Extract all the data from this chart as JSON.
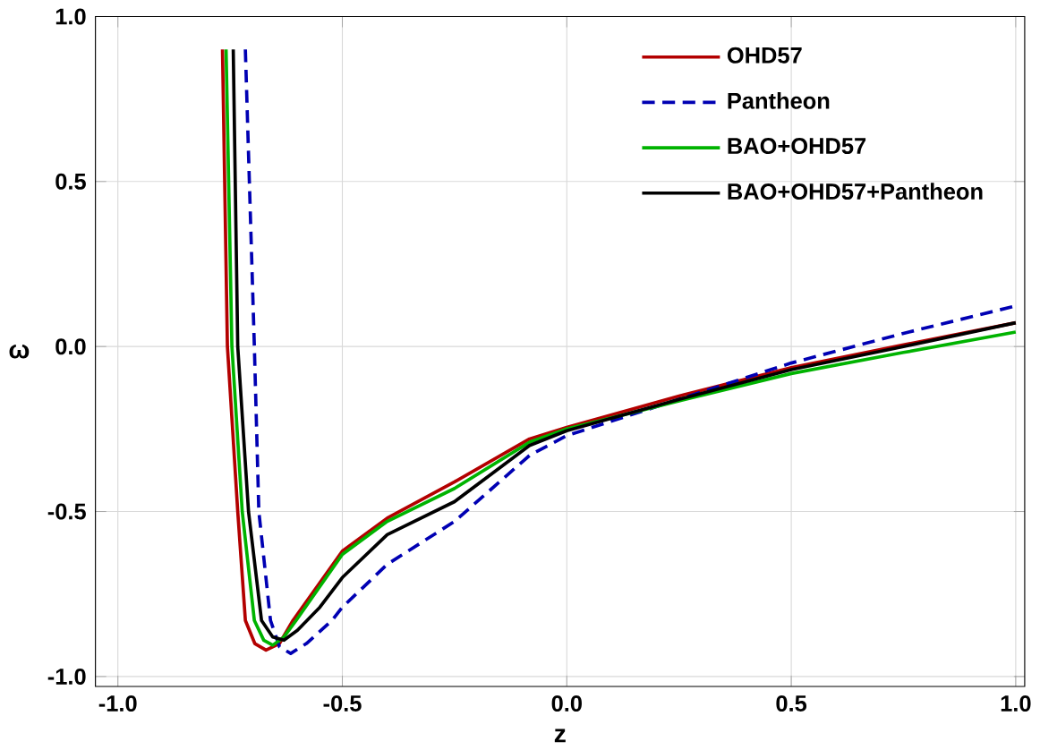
{
  "chart_data": {
    "type": "line",
    "xlabel": "z",
    "ylabel": "ω",
    "xlim": [
      -1.05,
      1.02
    ],
    "ylim": [
      -1.03,
      1.0
    ],
    "xticks": [
      {
        "value": -1.0,
        "label": "-1.0"
      },
      -0.5,
      {
        "value": 0.0,
        "label": "0.0"
      },
      0.5,
      {
        "value": 1.0,
        "label": "1.0"
      }
    ],
    "yticks": [
      {
        "value": -1.0,
        "label": "-1.0"
      },
      -0.5,
      {
        "value": 0.0,
        "label": "0.0"
      },
      0.5,
      {
        "value": 1.0,
        "label": "1.0"
      }
    ],
    "grid": true,
    "legend": "top right",
    "marker": "none",
    "series": [
      {
        "name": "OHD57",
        "color": "#b30000",
        "line_style": "solid",
        "x": [
          -0.767,
          -0.756,
          -0.733,
          -0.716,
          -0.695,
          -0.67,
          -0.64,
          -0.61,
          -0.5,
          -0.4,
          -0.25,
          -0.083,
          0,
          0.25,
          0.5,
          0.75,
          1.0
        ],
        "values": [
          0.9,
          0,
          -0.5,
          -0.83,
          -0.9,
          -0.92,
          -0.9,
          -0.83,
          -0.62,
          -0.52,
          -0.41,
          -0.28,
          -0.245,
          -0.15,
          -0.064,
          0.005,
          0.072
        ]
      },
      {
        "name": "Pantheon",
        "color": "#0000b3",
        "line_style": "dashed",
        "x": [
          -0.716,
          -0.696,
          -0.686,
          -0.66,
          -0.64,
          -0.615,
          -0.58,
          -0.523,
          -0.5,
          -0.4,
          -0.25,
          -0.083,
          0,
          0.25,
          0.5,
          0.75,
          1.0
        ],
        "values": [
          0.9,
          0,
          -0.5,
          -0.83,
          -0.91,
          -0.93,
          -0.9,
          -0.83,
          -0.79,
          -0.66,
          -0.53,
          -0.33,
          -0.27,
          -0.16,
          -0.05,
          0.04,
          0.123
        ]
      },
      {
        "name": "BAO+OHD57",
        "color": "#00b300",
        "line_style": "solid",
        "x": [
          -0.759,
          -0.746,
          -0.723,
          -0.696,
          -0.675,
          -0.655,
          -0.63,
          -0.603,
          -0.5,
          -0.4,
          -0.25,
          -0.083,
          0,
          0.25,
          0.5,
          0.75,
          1.0
        ],
        "values": [
          0.9,
          0,
          -0.5,
          -0.83,
          -0.89,
          -0.905,
          -0.88,
          -0.83,
          -0.63,
          -0.53,
          -0.43,
          -0.29,
          -0.25,
          -0.165,
          -0.082,
          -0.018,
          0.044
        ]
      },
      {
        "name": "BAO+OHD57+Pantheon",
        "color": "#000000",
        "line_style": "solid",
        "x": [
          -0.743,
          -0.733,
          -0.709,
          -0.68,
          -0.655,
          -0.63,
          -0.6,
          -0.55,
          -0.5,
          -0.4,
          -0.25,
          -0.083,
          0,
          0.25,
          0.5,
          0.75,
          1.0
        ],
        "values": [
          0.9,
          0,
          -0.5,
          -0.83,
          -0.88,
          -0.89,
          -0.86,
          -0.79,
          -0.7,
          -0.57,
          -0.47,
          -0.3,
          -0.255,
          -0.16,
          -0.07,
          0.0,
          0.072
        ]
      }
    ]
  }
}
